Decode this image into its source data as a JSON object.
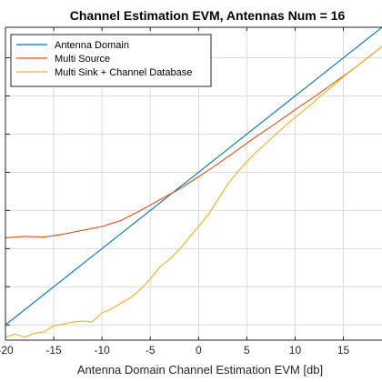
{
  "chart_data": {
    "type": "line",
    "title": "Channel Estimation EVM, Antennas Num = 16",
    "xlabel": "Antenna Domain Channel Estimation EVM [db]",
    "ylabel": "",
    "xlim": [
      -20,
      19
    ],
    "ylim": [
      -22,
      19
    ],
    "x_ticks": [
      -20,
      -15,
      -10,
      -5,
      0,
      5,
      10,
      15
    ],
    "x_tick_labels": [
      "-20",
      "-15",
      "-10",
      "-5",
      "0",
      "5",
      "10",
      "15"
    ],
    "y_ticks": [
      -20,
      -15,
      -10,
      -5,
      0,
      5,
      10,
      15
    ],
    "grid": true,
    "legend_position": "top-left",
    "series": [
      {
        "name": "Antenna Domain",
        "color": "#0072BD",
        "x": [
          -20,
          19
        ],
        "y": [
          -20,
          19
        ]
      },
      {
        "name": "Multi Source",
        "color": "#D95319",
        "x": [
          -20,
          -18,
          -16,
          -14,
          -12,
          -10,
          -8,
          -6,
          -4,
          -2,
          0,
          2,
          4,
          6,
          8,
          10,
          12,
          14,
          16,
          18,
          19
        ],
        "y": [
          -8.6,
          -8.4,
          -8.5,
          -8.1,
          -7.6,
          -7.1,
          -6.3,
          -5.0,
          -3.6,
          -2.2,
          -0.6,
          1.1,
          2.9,
          4.7,
          6.4,
          8.2,
          9.9,
          11.7,
          13.5,
          15.5,
          16.5
        ]
      },
      {
        "name": "Multi Sink + Channel Database",
        "color": "#EDB120",
        "x": [
          -20,
          -19,
          -18,
          -17,
          -16,
          -15,
          -14,
          -13,
          -12,
          -11,
          -10,
          -9,
          -8,
          -7,
          -6,
          -5,
          -4,
          -3,
          -2,
          -1,
          0,
          1,
          2,
          3,
          4,
          5,
          6,
          7,
          8,
          9,
          10,
          11,
          12,
          13,
          14,
          15,
          16,
          17,
          18,
          19
        ],
        "y": [
          -21.6,
          -21.2,
          -21.6,
          -21.1,
          -20.9,
          -20.1,
          -19.9,
          -19.6,
          -19.5,
          -19.6,
          -18.4,
          -17.9,
          -17.1,
          -16.4,
          -15.3,
          -14.0,
          -12.4,
          -11.4,
          -10.1,
          -8.6,
          -7.1,
          -5.6,
          -3.6,
          -1.6,
          0.0,
          1.4,
          2.7,
          3.8,
          5.0,
          6.1,
          7.2,
          8.2,
          9.3,
          10.4,
          11.4,
          12.5,
          13.5,
          14.5,
          15.5,
          16.5
        ]
      }
    ]
  }
}
